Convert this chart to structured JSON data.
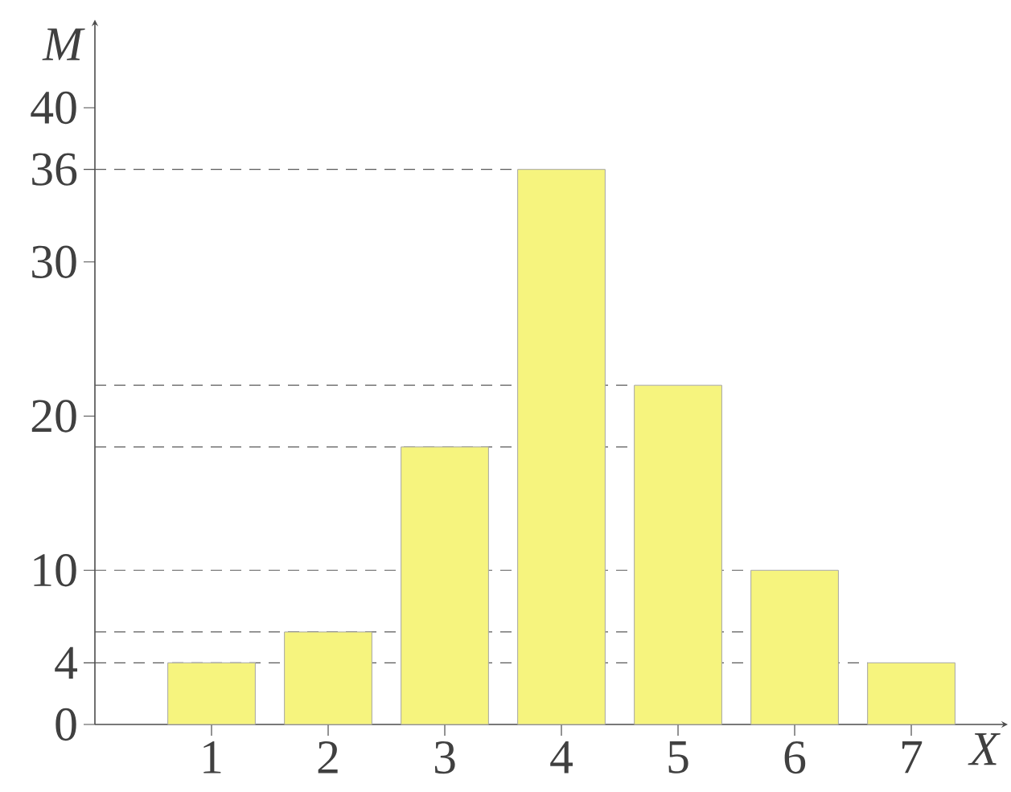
{
  "chart_data": {
    "type": "bar",
    "xlabel": "X",
    "ylabel": "M",
    "x": [
      1,
      2,
      3,
      4,
      5,
      6,
      7
    ],
    "values": [
      4,
      6,
      18,
      36,
      22,
      10,
      4
    ],
    "color": "#f6f47e",
    "xlim": [
      0,
      7.8
    ],
    "ylim": [
      0,
      45.5
    ],
    "xticks": [
      1,
      2,
      3,
      4,
      5,
      6,
      7
    ],
    "yticks": [
      0,
      4,
      10,
      20,
      30,
      36,
      40
    ],
    "ref_lines": [
      {
        "axis": "y",
        "value": 36,
        "line_style": "dashed"
      },
      {
        "axis": "y",
        "value": 22,
        "line_style": "dashed"
      },
      {
        "axis": "y",
        "value": 18,
        "line_style": "dashed"
      },
      {
        "axis": "y",
        "value": 10,
        "line_style": "dashed"
      },
      {
        "axis": "y",
        "value": 6,
        "line_style": "dashed"
      },
      {
        "axis": "y",
        "value": 4,
        "line_style": "dashed"
      }
    ],
    "grid": false
  }
}
